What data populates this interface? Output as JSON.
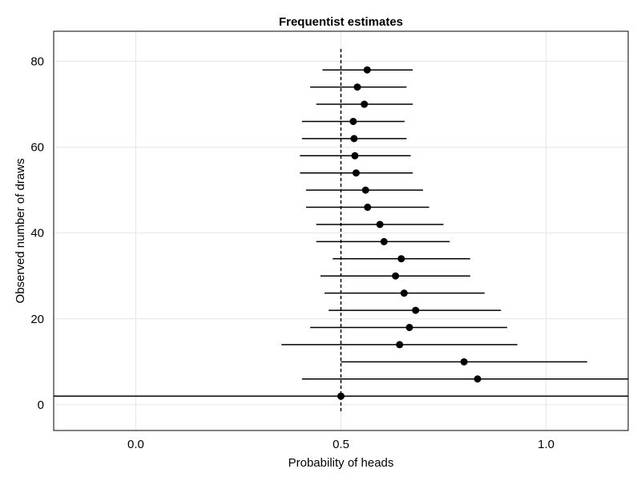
{
  "chart_data": {
    "type": "scatter",
    "title": "Frequentist estimates",
    "xlabel": "Probability of heads",
    "ylabel": "Observed number of draws",
    "xlim": [
      -0.2,
      1.2
    ],
    "ylim": [
      -6,
      87
    ],
    "x_ticks": [
      {
        "value": 0.0,
        "label": "0.0"
      },
      {
        "value": 0.5,
        "label": "0.5"
      },
      {
        "value": 1.0,
        "label": "1.0"
      }
    ],
    "y_ticks": [
      {
        "value": 0,
        "label": "0"
      },
      {
        "value": 20,
        "label": "20"
      },
      {
        "value": 40,
        "label": "40"
      },
      {
        "value": 60,
        "label": "60"
      },
      {
        "value": 80,
        "label": "80"
      }
    ],
    "grid": true,
    "reference_line": {
      "x": 0.5,
      "style": "dashed"
    },
    "series": [
      {
        "points": [
          {
            "draws": 2,
            "estimate": 0.5,
            "lower": -0.2,
            "upper": 1.2
          },
          {
            "draws": 6,
            "estimate": 0.833,
            "lower": 0.405,
            "upper": 1.2
          },
          {
            "draws": 10,
            "estimate": 0.8,
            "lower": 0.5,
            "upper": 1.1
          },
          {
            "draws": 14,
            "estimate": 0.643,
            "lower": 0.355,
            "upper": 0.93
          },
          {
            "draws": 18,
            "estimate": 0.667,
            "lower": 0.425,
            "upper": 0.905
          },
          {
            "draws": 22,
            "estimate": 0.682,
            "lower": 0.47,
            "upper": 0.89
          },
          {
            "draws": 26,
            "estimate": 0.654,
            "lower": 0.46,
            "upper": 0.85
          },
          {
            "draws": 30,
            "estimate": 0.633,
            "lower": 0.45,
            "upper": 0.815
          },
          {
            "draws": 34,
            "estimate": 0.647,
            "lower": 0.48,
            "upper": 0.815
          },
          {
            "draws": 38,
            "estimate": 0.605,
            "lower": 0.44,
            "upper": 0.765
          },
          {
            "draws": 42,
            "estimate": 0.595,
            "lower": 0.44,
            "upper": 0.75
          },
          {
            "draws": 46,
            "estimate": 0.565,
            "lower": 0.415,
            "upper": 0.715
          },
          {
            "draws": 50,
            "estimate": 0.56,
            "lower": 0.415,
            "upper": 0.7
          },
          {
            "draws": 54,
            "estimate": 0.537,
            "lower": 0.4,
            "upper": 0.675
          },
          {
            "draws": 58,
            "estimate": 0.534,
            "lower": 0.4,
            "upper": 0.67
          },
          {
            "draws": 62,
            "estimate": 0.532,
            "lower": 0.405,
            "upper": 0.66
          },
          {
            "draws": 66,
            "estimate": 0.53,
            "lower": 0.405,
            "upper": 0.655
          },
          {
            "draws": 70,
            "estimate": 0.557,
            "lower": 0.44,
            "upper": 0.675
          },
          {
            "draws": 74,
            "estimate": 0.54,
            "lower": 0.425,
            "upper": 0.66
          },
          {
            "draws": 78,
            "estimate": 0.564,
            "lower": 0.455,
            "upper": 0.675
          }
        ]
      }
    ]
  }
}
